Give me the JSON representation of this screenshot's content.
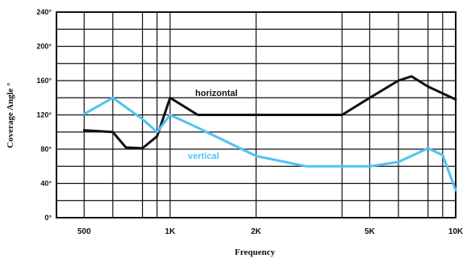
{
  "chart_data": {
    "type": "line",
    "title": "",
    "xlabel": "Frequency",
    "ylabel": "Coverage Angle °",
    "x_scale": "log",
    "xlim": [
      400,
      10000
    ],
    "ylim": [
      0,
      240
    ],
    "grid": true,
    "y_ticks": [
      {
        "value": 0,
        "label": "0°"
      },
      {
        "value": 40,
        "label": "40°"
      },
      {
        "value": 80,
        "label": "80°"
      },
      {
        "value": 120,
        "label": "120°"
      },
      {
        "value": 160,
        "label": "160°"
      },
      {
        "value": 200,
        "label": "200°"
      },
      {
        "value": 240,
        "label": "240°"
      }
    ],
    "x_ticks": [
      {
        "value": 500,
        "label": "500"
      },
      {
        "value": 1000,
        "label": "1K"
      },
      {
        "value": 2000,
        "label": "2K"
      },
      {
        "value": 5000,
        "label": "5K"
      },
      {
        "value": 10000,
        "label": "10K"
      }
    ],
    "x_gridlines": [
      500,
      630,
      800,
      900,
      1000,
      2000,
      4000,
      5000,
      6300,
      8000,
      9000,
      10000
    ],
    "series": [
      {
        "name": "horizontal",
        "color": "#111111",
        "points": [
          [
            500,
            102
          ],
          [
            630,
            100
          ],
          [
            700,
            82
          ],
          [
            800,
            81
          ],
          [
            900,
            95
          ],
          [
            1000,
            140
          ],
          [
            1250,
            120
          ],
          [
            2500,
            120
          ],
          [
            4000,
            120
          ],
          [
            5000,
            140
          ],
          [
            6300,
            160
          ],
          [
            7000,
            165
          ],
          [
            8000,
            153
          ],
          [
            10000,
            138
          ]
        ]
      },
      {
        "name": "vertical",
        "color": "#4fc3f1",
        "points": [
          [
            500,
            121
          ],
          [
            630,
            140
          ],
          [
            800,
            115
          ],
          [
            900,
            100
          ],
          [
            1000,
            120
          ],
          [
            1250,
            105
          ],
          [
            2000,
            72
          ],
          [
            3000,
            60
          ],
          [
            5000,
            60
          ],
          [
            6300,
            65
          ],
          [
            8000,
            81
          ],
          [
            9000,
            73
          ],
          [
            10000,
            32
          ]
        ]
      }
    ]
  }
}
